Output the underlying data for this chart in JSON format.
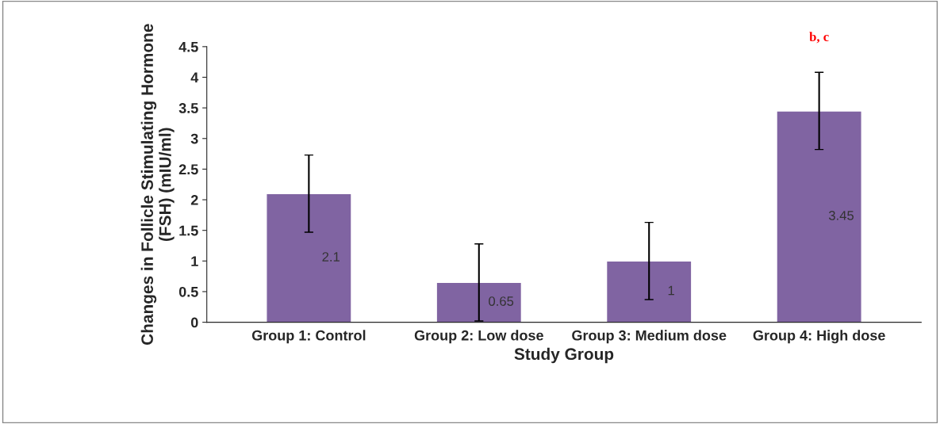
{
  "chart_data": {
    "type": "bar",
    "xlabel": "Study Group",
    "ylabel": "Changes in Follicle Stimulating Hormone (FSH) (mIU/ml)",
    "categories": [
      "Group 1: Control",
      "Group 2: Low dose",
      "Group 3: Medium dose",
      "Group 4: High dose"
    ],
    "values": [
      2.1,
      0.65,
      1,
      3.45
    ],
    "errors": [
      0.63,
      0.63,
      0.63,
      0.63
    ],
    "color": "#8064a2",
    "data_labels": true,
    "ylim": [
      0,
      4.5
    ],
    "yticks": [
      0,
      0.5,
      1,
      1.5,
      2,
      2.5,
      3,
      3.5,
      4,
      4.5
    ],
    "annotations": [
      "b, c"
    ],
    "grid": false,
    "legend": false
  }
}
